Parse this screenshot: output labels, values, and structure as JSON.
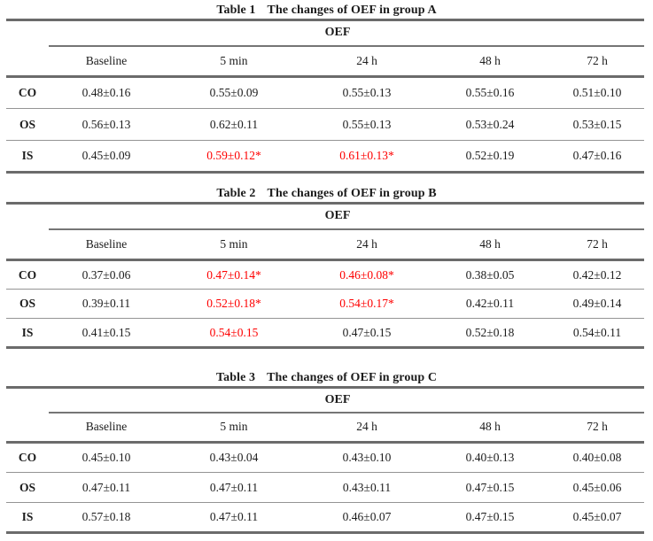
{
  "styles": {
    "highlight_color": "#fe0000",
    "text_color": "#1c1c1c",
    "rule_color": "#6b6b6b"
  },
  "tables": [
    {
      "number": "Table 1",
      "caption": "The changes of OEF in group A",
      "span_header": "OEF",
      "columns": [
        "Baseline",
        "5 min",
        "24 h",
        "48 h",
        "72 h"
      ],
      "rows": [
        {
          "label": "CO",
          "cells": [
            {
              "text": "0.48±0.16",
              "highlight": false
            },
            {
              "text": "0.55±0.09",
              "highlight": false
            },
            {
              "text": "0.55±0.13",
              "highlight": false
            },
            {
              "text": "0.55±0.16",
              "highlight": false
            },
            {
              "text": "0.51±0.10",
              "highlight": false
            }
          ]
        },
        {
          "label": "OS",
          "cells": [
            {
              "text": "0.56±0.13",
              "highlight": false
            },
            {
              "text": "0.62±0.11",
              "highlight": false
            },
            {
              "text": "0.55±0.13",
              "highlight": false
            },
            {
              "text": "0.53±0.24",
              "highlight": false
            },
            {
              "text": "0.53±0.15",
              "highlight": false
            }
          ]
        },
        {
          "label": "IS",
          "cells": [
            {
              "text": "0.45±0.09",
              "highlight": false
            },
            {
              "text": "0.59±0.12*",
              "highlight": true
            },
            {
              "text": "0.61±0.13*",
              "highlight": true
            },
            {
              "text": "0.52±0.19",
              "highlight": false
            },
            {
              "text": "0.47±0.16",
              "highlight": false
            }
          ]
        }
      ]
    },
    {
      "number": "Table 2",
      "caption": "The changes of OEF in group B",
      "span_header": "OEF",
      "columns": [
        "Baseline",
        "5 min",
        "24 h",
        "48 h",
        "72 h"
      ],
      "rows": [
        {
          "label": "CO",
          "cells": [
            {
              "text": "0.37±0.06",
              "highlight": false
            },
            {
              "text": "0.47±0.14*",
              "highlight": true
            },
            {
              "text": "0.46±0.08*",
              "highlight": true
            },
            {
              "text": "0.38±0.05",
              "highlight": false
            },
            {
              "text": "0.42±0.12",
              "highlight": false
            }
          ]
        },
        {
          "label": "OS",
          "cells": [
            {
              "text": "0.39±0.11",
              "highlight": false
            },
            {
              "text": "0.52±0.18*",
              "highlight": true
            },
            {
              "text": "0.54±0.17*",
              "highlight": true
            },
            {
              "text": "0.42±0.11",
              "highlight": false
            },
            {
              "text": "0.49±0.14",
              "highlight": false
            }
          ]
        },
        {
          "label": "IS",
          "cells": [
            {
              "text": "0.41±0.15",
              "highlight": false
            },
            {
              "text": "0.54±0.15",
              "highlight": true
            },
            {
              "text": "0.47±0.15",
              "highlight": false
            },
            {
              "text": "0.52±0.18",
              "highlight": false
            },
            {
              "text": "0.54±0.11",
              "highlight": false
            }
          ]
        }
      ]
    },
    {
      "number": "Table 3",
      "caption": "The changes of OEF in group C",
      "span_header": "OEF",
      "columns": [
        "Baseline",
        "5 min",
        "24 h",
        "48 h",
        "72 h"
      ],
      "rows": [
        {
          "label": "CO",
          "cells": [
            {
              "text": "0.45±0.10",
              "highlight": false
            },
            {
              "text": "0.43±0.04",
              "highlight": false
            },
            {
              "text": "0.43±0.10",
              "highlight": false
            },
            {
              "text": "0.40±0.13",
              "highlight": false
            },
            {
              "text": "0.40±0.08",
              "highlight": false
            }
          ]
        },
        {
          "label": "OS",
          "cells": [
            {
              "text": "0.47±0.11",
              "highlight": false
            },
            {
              "text": "0.47±0.11",
              "highlight": false
            },
            {
              "text": "0.43±0.11",
              "highlight": false
            },
            {
              "text": "0.47±0.15",
              "highlight": false
            },
            {
              "text": "0.45±0.06",
              "highlight": false
            }
          ]
        },
        {
          "label": "IS",
          "cells": [
            {
              "text": "0.57±0.18",
              "highlight": false
            },
            {
              "text": "0.47±0.11",
              "highlight": false
            },
            {
              "text": "0.46±0.07",
              "highlight": false
            },
            {
              "text": "0.47±0.15",
              "highlight": false
            },
            {
              "text": "0.45±0.07",
              "highlight": false
            }
          ]
        }
      ]
    }
  ]
}
